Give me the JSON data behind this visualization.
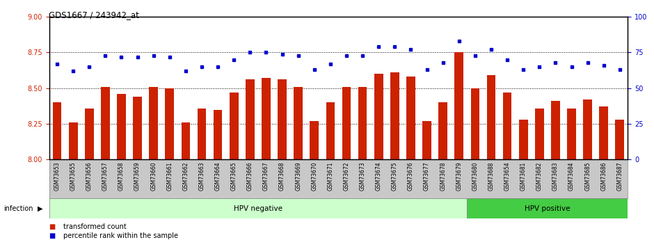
{
  "title": "GDS1667 / 243942_at",
  "categories": [
    "GSM73653",
    "GSM73655",
    "GSM73656",
    "GSM73657",
    "GSM73658",
    "GSM73659",
    "GSM73660",
    "GSM73661",
    "GSM73662",
    "GSM73663",
    "GSM73664",
    "GSM73665",
    "GSM73666",
    "GSM73667",
    "GSM73668",
    "GSM73669",
    "GSM73670",
    "GSM73671",
    "GSM73672",
    "GSM73673",
    "GSM73674",
    "GSM73675",
    "GSM73676",
    "GSM73677",
    "GSM73678",
    "GSM73679",
    "GSM73680",
    "GSM73688",
    "GSM73654",
    "GSM73681",
    "GSM73682",
    "GSM73683",
    "GSM73684",
    "GSM73685",
    "GSM73686",
    "GSM73687"
  ],
  "bar_values": [
    8.4,
    8.26,
    8.36,
    8.51,
    8.46,
    8.44,
    8.51,
    8.5,
    8.26,
    8.36,
    8.35,
    8.47,
    8.56,
    8.57,
    8.56,
    8.51,
    8.27,
    8.4,
    8.51,
    8.51,
    8.6,
    8.61,
    8.58,
    8.27,
    8.4,
    8.75,
    8.5,
    8.59,
    8.47,
    8.28,
    8.36,
    8.41,
    8.36,
    8.42,
    8.37,
    8.28
  ],
  "percentile_values": [
    67,
    62,
    65,
    73,
    72,
    72,
    73,
    72,
    62,
    65,
    65,
    70,
    75,
    75,
    74,
    73,
    63,
    67,
    73,
    73,
    79,
    79,
    77,
    63,
    68,
    83,
    73,
    77,
    70,
    63,
    65,
    68,
    65,
    68,
    66,
    63
  ],
  "hpv_negative_count": 26,
  "hpv_positive_count": 10,
  "bar_color": "#cc2200",
  "dot_color": "#0000cc",
  "ylim_left": [
    8.0,
    9.0
  ],
  "ylim_right": [
    0,
    100
  ],
  "yticks_left": [
    8.0,
    8.25,
    8.5,
    8.75,
    9.0
  ],
  "yticks_right": [
    0,
    25,
    50,
    75,
    100
  ],
  "grid_lines": [
    8.25,
    8.5,
    8.75
  ],
  "hpv_neg_color": "#ccffcc",
  "hpv_pos_color": "#44cc44",
  "label_row_color": "#c8c8c8",
  "background_color": "#ffffff"
}
